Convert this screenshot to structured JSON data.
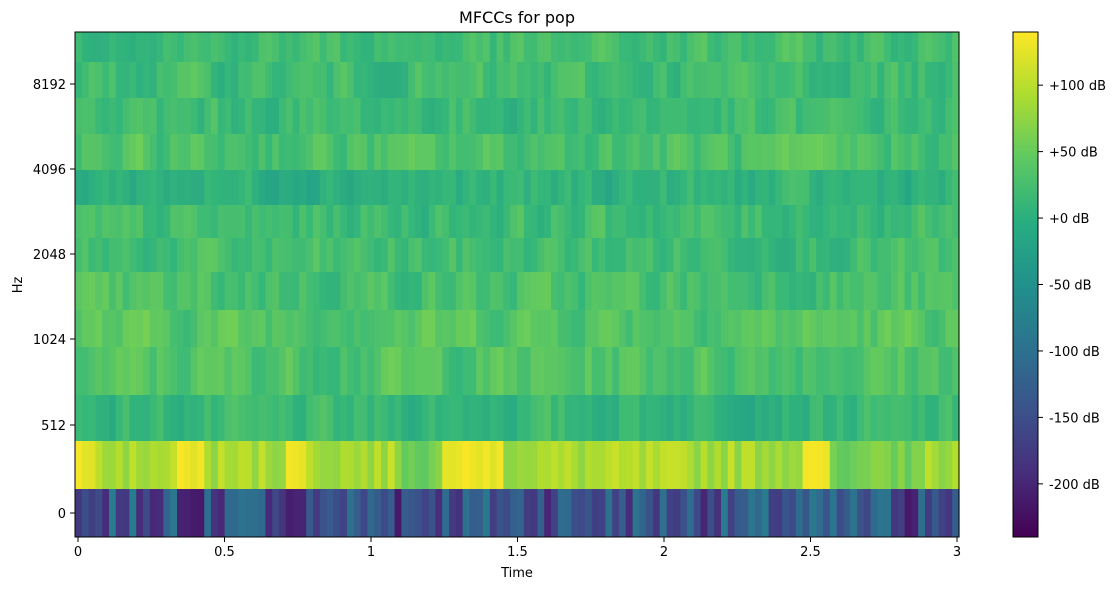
{
  "chart_data": {
    "type": "heatmap",
    "title": "MFCCs for pop",
    "xlabel": "Time",
    "ylabel": "Hz",
    "xlim": [
      0,
      3.02
    ],
    "x_ticks": [
      {
        "value": 0,
        "label": "0"
      },
      {
        "value": 0.5,
        "label": "0.5"
      },
      {
        "value": 1,
        "label": "1"
      },
      {
        "value": 1.5,
        "label": "1.5"
      },
      {
        "value": 2,
        "label": "2"
      },
      {
        "value": 2.5,
        "label": "2.5"
      },
      {
        "value": 3,
        "label": "3"
      }
    ],
    "y_ticks": [
      "0",
      "512",
      "1024",
      "2048",
      "4096",
      "8192"
    ],
    "n_rows": 13,
    "n_frames": 130,
    "colormap": "viridis",
    "colorbar": {
      "range": [
        -240,
        140
      ],
      "ticks": [
        {
          "value": 100,
          "label": "+100 dB"
        },
        {
          "value": 50,
          "label": "+50 dB"
        },
        {
          "value": 0,
          "label": "+0 dB"
        },
        {
          "value": -50,
          "label": "-50 dB"
        },
        {
          "value": -100,
          "label": "-100 dB"
        },
        {
          "value": -150,
          "label": "-150 dB"
        },
        {
          "value": -200,
          "label": "-200 dB"
        }
      ]
    },
    "row_approx_mean_db": [
      -140,
      85,
      12,
      35,
      40,
      28,
      22,
      20,
      5,
      30,
      18,
      20,
      22
    ]
  }
}
